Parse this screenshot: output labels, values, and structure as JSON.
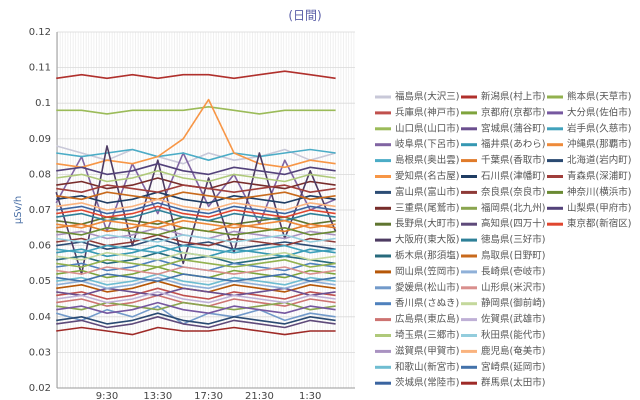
{
  "chart_data": {
    "type": "line",
    "title": "(日間)",
    "y_label": "μSv/h",
    "categories": [
      null,
      null,
      "9:30",
      null,
      "13:30",
      null,
      "17:30",
      null,
      "21:30",
      null,
      "1:30",
      null
    ],
    "ylim": [
      0.02,
      0.12
    ],
    "yticks": [
      0.02,
      0.03,
      0.04,
      0.05,
      0.06,
      0.07,
      0.08,
      0.09,
      0.1,
      0.11,
      0.12
    ],
    "grid": true,
    "series": [
      {
        "name": "福島県(大沢三)",
        "color": "#c8c8d8",
        "values": [
          0.088,
          0.086,
          0.084,
          0.087,
          0.085,
          0.083,
          0.086,
          0.084,
          0.085,
          0.087,
          0.084,
          0.086
        ]
      },
      {
        "name": "兵庫県(神戸市)",
        "color": "#c0504d",
        "values": [
          0.046,
          0.047,
          0.045,
          0.046,
          0.048,
          0.046,
          0.045,
          0.047,
          0.046,
          0.045,
          0.047,
          0.046
        ]
      },
      {
        "name": "山口県(山口市)",
        "color": "#9bbb59",
        "values": [
          0.098,
          0.098,
          0.097,
          0.098,
          0.098,
          0.098,
          0.099,
          0.098,
          0.097,
          0.098,
          0.098,
          0.098
        ]
      },
      {
        "name": "岐阜県(下呂市)",
        "color": "#8064a2",
        "values": [
          0.072,
          0.085,
          0.064,
          0.083,
          0.069,
          0.086,
          0.071,
          0.08,
          0.066,
          0.084,
          0.07,
          0.073
        ]
      },
      {
        "name": "島根県(奥出雲)",
        "color": "#4bacc6",
        "values": [
          0.086,
          0.085,
          0.086,
          0.087,
          0.085,
          0.086,
          0.084,
          0.086,
          0.085,
          0.086,
          0.087,
          0.086
        ]
      },
      {
        "name": "愛知県(名古屋)",
        "color": "#f79646",
        "values": [
          0.083,
          0.082,
          0.084,
          0.083,
          0.085,
          0.09,
          0.101,
          0.086,
          0.083,
          0.082,
          0.084,
          0.083
        ]
      },
      {
        "name": "富山県(富山市)",
        "color": "#2c4d75",
        "values": [
          0.06,
          0.061,
          0.059,
          0.06,
          0.062,
          0.06,
          0.061,
          0.059,
          0.06,
          0.061,
          0.06,
          0.059
        ]
      },
      {
        "name": "三重県(尾鷲市)",
        "color": "#772c2a",
        "values": [
          0.077,
          0.078,
          0.076,
          0.077,
          0.079,
          0.077,
          0.076,
          0.078,
          0.077,
          0.076,
          0.078,
          0.077
        ]
      },
      {
        "name": "長野県(大町市)",
        "color": "#5f7530",
        "values": [
          0.067,
          0.066,
          0.068,
          0.067,
          0.066,
          0.068,
          0.067,
          0.066,
          0.067,
          0.068,
          0.066,
          0.067
        ]
      },
      {
        "name": "大阪府(東大阪)",
        "color": "#4d3b62",
        "values": [
          0.075,
          0.052,
          0.088,
          0.06,
          0.084,
          0.055,
          0.079,
          0.058,
          0.086,
          0.062,
          0.081,
          0.064
        ]
      },
      {
        "name": "栃木県(那須塩)",
        "color": "#276a7c",
        "values": [
          0.056,
          0.057,
          0.055,
          0.056,
          0.058,
          0.056,
          0.057,
          0.055,
          0.056,
          0.057,
          0.056,
          0.055
        ]
      },
      {
        "name": "岡山県(笠岡市)",
        "color": "#b65708",
        "values": [
          0.048,
          0.049,
          0.047,
          0.048,
          0.05,
          0.048,
          0.047,
          0.049,
          0.048,
          0.047,
          0.049,
          0.048
        ]
      },
      {
        "name": "愛媛県(松山市)",
        "color": "#729aca",
        "values": [
          0.041,
          0.039,
          0.042,
          0.04,
          0.043,
          0.038,
          0.041,
          0.04,
          0.042,
          0.039,
          0.041,
          0.04
        ]
      },
      {
        "name": "香川県(さぬき)",
        "color": "#4f81bd",
        "values": [
          0.054,
          0.055,
          0.053,
          0.054,
          0.056,
          0.054,
          0.053,
          0.055,
          0.054,
          0.053,
          0.055,
          0.054
        ]
      },
      {
        "name": "広島県(東広島)",
        "color": "#cd7371",
        "values": [
          0.044,
          0.045,
          0.043,
          0.044,
          0.046,
          0.044,
          0.043,
          0.045,
          0.044,
          0.043,
          0.045,
          0.044
        ]
      },
      {
        "name": "埼玉県(三郷市)",
        "color": "#afc97a",
        "values": [
          0.079,
          0.08,
          0.078,
          0.079,
          0.081,
          0.079,
          0.078,
          0.08,
          0.079,
          0.078,
          0.08,
          0.079
        ]
      },
      {
        "name": "滋賀県(甲賀市)",
        "color": "#a992c1",
        "values": [
          0.063,
          0.064,
          0.062,
          0.063,
          0.065,
          0.063,
          0.062,
          0.064,
          0.063,
          0.062,
          0.064,
          0.063
        ]
      },
      {
        "name": "和歌山(新宮市)",
        "color": "#6fbdd1",
        "values": [
          0.05,
          0.051,
          0.049,
          0.05,
          0.052,
          0.05,
          0.049,
          0.051,
          0.05,
          0.049,
          0.051,
          0.05
        ]
      },
      {
        "name": "茨城県(常陸市)",
        "color": "#3a64a0",
        "values": [
          0.07,
          0.071,
          0.069,
          0.07,
          0.072,
          0.07,
          0.069,
          0.071,
          0.07,
          0.069,
          0.071,
          0.07
        ]
      },
      {
        "name": "新潟県(村上市)",
        "color": "#b0302c",
        "values": [
          0.107,
          0.108,
          0.107,
          0.108,
          0.107,
          0.108,
          0.108,
          0.107,
          0.108,
          0.109,
          0.108,
          0.107
        ]
      },
      {
        "name": "京都府(京都市)",
        "color": "#7fa43d",
        "values": [
          0.052,
          0.053,
          0.051,
          0.052,
          0.054,
          0.052,
          0.051,
          0.053,
          0.052,
          0.051,
          0.053,
          0.052
        ]
      },
      {
        "name": "宮城県(蒲谷町)",
        "color": "#6b4f8f",
        "values": [
          0.047,
          0.046,
          0.048,
          0.047,
          0.046,
          0.048,
          0.047,
          0.046,
          0.047,
          0.048,
          0.046,
          0.047
        ]
      },
      {
        "name": "福井県(あわら)",
        "color": "#3598b2",
        "values": [
          0.058,
          0.059,
          0.057,
          0.058,
          0.06,
          0.058,
          0.057,
          0.059,
          0.058,
          0.057,
          0.059,
          0.058
        ]
      },
      {
        "name": "千葉県(香取市)",
        "color": "#e07b2a",
        "values": [
          0.065,
          0.066,
          0.064,
          0.065,
          0.067,
          0.065,
          0.064,
          0.066,
          0.065,
          0.064,
          0.066,
          0.065
        ]
      },
      {
        "name": "石川県(津幡町)",
        "color": "#1f3d63",
        "values": [
          0.073,
          0.074,
          0.072,
          0.073,
          0.075,
          0.073,
          0.072,
          0.074,
          0.073,
          0.072,
          0.074,
          0.073
        ]
      },
      {
        "name": "奈良県(奈良市)",
        "color": "#8e3a37",
        "values": [
          0.061,
          0.062,
          0.06,
          0.061,
          0.063,
          0.061,
          0.06,
          0.062,
          0.061,
          0.06,
          0.062,
          0.061
        ]
      },
      {
        "name": "福岡県(北九州)",
        "color": "#8aa54f",
        "values": [
          0.043,
          0.042,
          0.044,
          0.043,
          0.042,
          0.044,
          0.043,
          0.042,
          0.043,
          0.044,
          0.042,
          0.043
        ]
      },
      {
        "name": "高知県(四万十)",
        "color": "#5e4a7a",
        "values": [
          0.038,
          0.039,
          0.037,
          0.038,
          0.04,
          0.038,
          0.037,
          0.039,
          0.038,
          0.037,
          0.039,
          0.038
        ]
      },
      {
        "name": "徳島県(三好市)",
        "color": "#2e8098",
        "values": [
          0.068,
          0.069,
          0.067,
          0.068,
          0.07,
          0.068,
          0.067,
          0.069,
          0.068,
          0.067,
          0.069,
          0.068
        ]
      },
      {
        "name": "鳥取県(日野町)",
        "color": "#c86a1c",
        "values": [
          0.074,
          0.073,
          0.075,
          0.074,
          0.073,
          0.075,
          0.074,
          0.073,
          0.074,
          0.075,
          0.073,
          0.074
        ]
      },
      {
        "name": "長崎県(壱岐市)",
        "color": "#8fb0d8",
        "values": [
          0.049,
          0.05,
          0.048,
          0.049,
          0.051,
          0.049,
          0.048,
          0.05,
          0.049,
          0.048,
          0.05,
          0.049
        ]
      },
      {
        "name": "山形県(米沢市)",
        "color": "#d98f8d",
        "values": [
          0.053,
          0.052,
          0.054,
          0.053,
          0.052,
          0.054,
          0.053,
          0.052,
          0.053,
          0.054,
          0.052,
          0.053
        ]
      },
      {
        "name": "静岡県(御前崎)",
        "color": "#c4d89c",
        "values": [
          0.057,
          0.056,
          0.058,
          0.057,
          0.056,
          0.058,
          0.057,
          0.056,
          0.057,
          0.058,
          0.056,
          0.057
        ]
      },
      {
        "name": "佐賀県(武雄市)",
        "color": "#bfb0d6",
        "values": [
          0.045,
          0.046,
          0.044,
          0.045,
          0.047,
          0.045,
          0.044,
          0.046,
          0.045,
          0.044,
          0.046,
          0.045
        ]
      },
      {
        "name": "秋田県(能代市)",
        "color": "#93cddd",
        "values": [
          0.062,
          0.061,
          0.063,
          0.062,
          0.061,
          0.063,
          0.062,
          0.061,
          0.062,
          0.063,
          0.061,
          0.062
        ]
      },
      {
        "name": "鹿児島(奄美市)",
        "color": "#fab37e",
        "values": [
          0.071,
          0.072,
          0.07,
          0.071,
          0.073,
          0.071,
          0.07,
          0.072,
          0.071,
          0.07,
          0.072,
          0.071
        ]
      },
      {
        "name": "宮崎県(延岡市)",
        "color": "#4372aa",
        "values": [
          0.051,
          0.05,
          0.052,
          0.051,
          0.05,
          0.052,
          0.051,
          0.05,
          0.051,
          0.052,
          0.05,
          0.051
        ]
      },
      {
        "name": "群馬県(太田市)",
        "color": "#9e2a27",
        "values": [
          0.036,
          0.037,
          0.036,
          0.035,
          0.037,
          0.036,
          0.036,
          0.037,
          0.036,
          0.035,
          0.036,
          0.036
        ]
      },
      {
        "name": "熊本県(天草市)",
        "color": "#92b14e",
        "values": [
          0.055,
          0.054,
          0.056,
          0.055,
          0.054,
          0.056,
          0.055,
          0.054,
          0.055,
          0.056,
          0.054,
          0.055
        ]
      },
      {
        "name": "大分県(佐伯市)",
        "color": "#7658a0",
        "values": [
          0.042,
          0.043,
          0.041,
          0.042,
          0.044,
          0.042,
          0.041,
          0.043,
          0.042,
          0.041,
          0.043,
          0.042
        ]
      },
      {
        "name": "岩手県(久慈市)",
        "color": "#41a2bc",
        "values": [
          0.059,
          0.058,
          0.06,
          0.059,
          0.058,
          0.06,
          0.059,
          0.058,
          0.059,
          0.06,
          0.058,
          0.059
        ]
      },
      {
        "name": "沖縄県(那覇市)",
        "color": "#ee8a3a",
        "values": [
          0.066,
          0.065,
          0.067,
          0.066,
          0.065,
          0.067,
          0.066,
          0.065,
          0.066,
          0.067,
          0.065,
          0.066
        ]
      },
      {
        "name": "北海道(岩内町)",
        "color": "#2a4a72",
        "values": [
          0.039,
          0.04,
          0.038,
          0.039,
          0.041,
          0.039,
          0.038,
          0.04,
          0.039,
          0.038,
          0.04,
          0.039
        ]
      },
      {
        "name": "青森県(深浦町)",
        "color": "#a03e3b",
        "values": [
          0.076,
          0.075,
          0.077,
          0.076,
          0.075,
          0.077,
          0.076,
          0.075,
          0.076,
          0.077,
          0.075,
          0.076
        ]
      },
      {
        "name": "神奈川(横浜市)",
        "color": "#6a8a33",
        "values": [
          0.064,
          0.063,
          0.065,
          0.064,
          0.063,
          0.065,
          0.064,
          0.063,
          0.064,
          0.065,
          0.063,
          0.064
        ]
      },
      {
        "name": "山梨県(甲府市)",
        "color": "#53427a",
        "values": [
          0.081,
          0.082,
          0.08,
          0.081,
          0.083,
          0.081,
          0.08,
          0.082,
          0.081,
          0.08,
          0.082,
          0.081
        ]
      },
      {
        "name": "東京都(新宿区)",
        "color": "#e0462f",
        "values": [
          0.069,
          0.07,
          0.068,
          0.069,
          0.071,
          0.069,
          0.068,
          0.07,
          0.069,
          0.068,
          0.07,
          0.069
        ]
      }
    ]
  }
}
